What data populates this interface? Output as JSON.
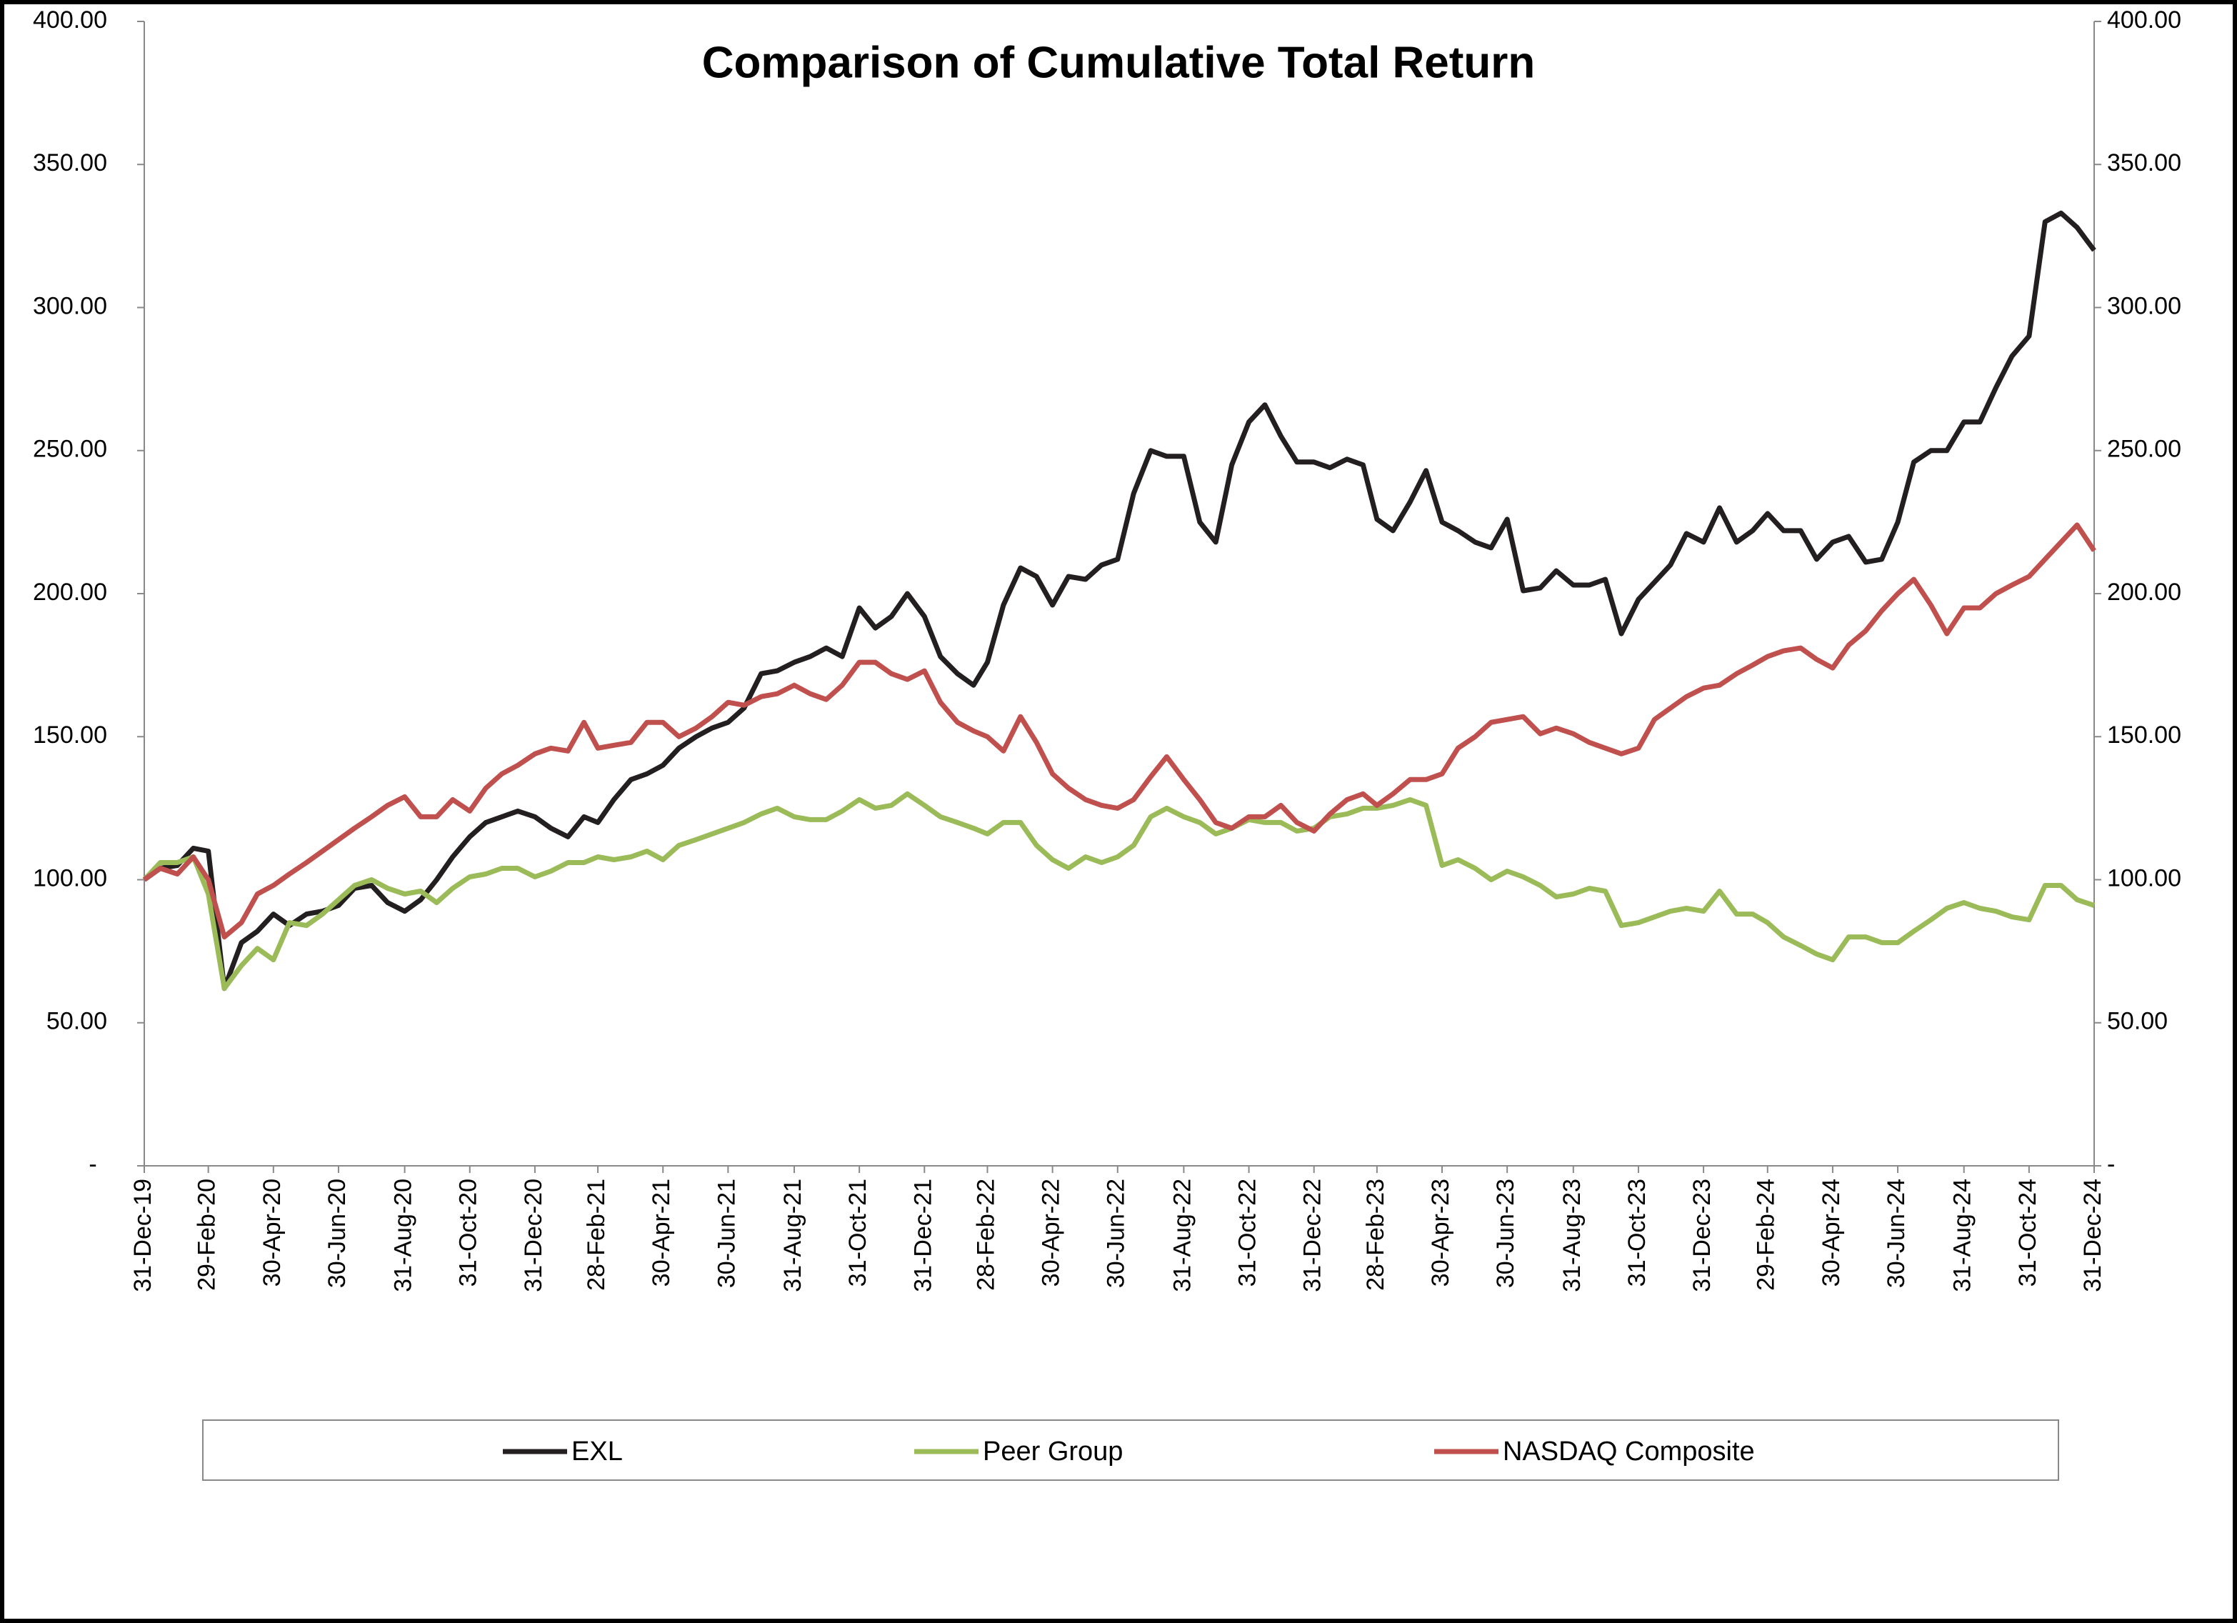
{
  "chart_data": {
    "type": "line",
    "title": "Comparison of Cumulative Total Return",
    "x": [
      "2019-12-31",
      "2020-01-15",
      "2020-01-31",
      "2020-02-15",
      "2020-02-29",
      "2020-03-15",
      "2020-03-31",
      "2020-04-15",
      "2020-04-30",
      "2020-05-15",
      "2020-05-31",
      "2020-06-15",
      "2020-06-30",
      "2020-07-15",
      "2020-07-31",
      "2020-08-15",
      "2020-08-31",
      "2020-09-15",
      "2020-09-30",
      "2020-10-15",
      "2020-10-31",
      "2020-11-15",
      "2020-11-30",
      "2020-12-15",
      "2020-12-31",
      "2021-01-15",
      "2021-01-31",
      "2021-02-15",
      "2021-02-28",
      "2021-03-15",
      "2021-03-31",
      "2021-04-15",
      "2021-04-30",
      "2021-05-15",
      "2021-05-31",
      "2021-06-15",
      "2021-06-30",
      "2021-07-15",
      "2021-07-31",
      "2021-08-15",
      "2021-08-31",
      "2021-09-15",
      "2021-09-30",
      "2021-10-15",
      "2021-10-31",
      "2021-11-15",
      "2021-11-30",
      "2021-12-15",
      "2021-12-31",
      "2022-01-15",
      "2022-01-31",
      "2022-02-15",
      "2022-02-28",
      "2022-03-15",
      "2022-03-31",
      "2022-04-15",
      "2022-04-30",
      "2022-05-15",
      "2022-05-31",
      "2022-06-15",
      "2022-06-30",
      "2022-07-15",
      "2022-07-31",
      "2022-08-15",
      "2022-08-31",
      "2022-09-15",
      "2022-09-30",
      "2022-10-15",
      "2022-10-31",
      "2022-11-15",
      "2022-11-30",
      "2022-12-15",
      "2022-12-31",
      "2023-01-15",
      "2023-01-31",
      "2023-02-15",
      "2023-02-28",
      "2023-03-15",
      "2023-03-31",
      "2023-04-15",
      "2023-04-30",
      "2023-05-15",
      "2023-05-31",
      "2023-06-15",
      "2023-06-30",
      "2023-07-15",
      "2023-07-31",
      "2023-08-15",
      "2023-08-31",
      "2023-09-15",
      "2023-09-30",
      "2023-10-15",
      "2023-10-31",
      "2023-11-15",
      "2023-11-30",
      "2023-12-15",
      "2023-12-31",
      "2024-01-15",
      "2024-01-31",
      "2024-02-15",
      "2024-02-29",
      "2024-03-15",
      "2024-03-31",
      "2024-04-15",
      "2024-04-30",
      "2024-05-15",
      "2024-05-31",
      "2024-06-15",
      "2024-06-30",
      "2024-07-15",
      "2024-07-31",
      "2024-08-15",
      "2024-08-31",
      "2024-09-15",
      "2024-09-30",
      "2024-10-15",
      "2024-10-31",
      "2024-11-15",
      "2024-11-30",
      "2024-12-15",
      "2024-12-31"
    ],
    "series": [
      {
        "name": "EXL",
        "color": "#231f20",
        "values": [
          100,
          104,
          105,
          111,
          110,
          62,
          78,
          82,
          88,
          84,
          88,
          89,
          91,
          97,
          98,
          92,
          89,
          93,
          100,
          108,
          115,
          120,
          122,
          124,
          122,
          118,
          115,
          122,
          120,
          128,
          135,
          137,
          140,
          146,
          150,
          153,
          155,
          160,
          172,
          173,
          176,
          178,
          181,
          178,
          195,
          188,
          192,
          200,
          192,
          178,
          172,
          168,
          176,
          196,
          209,
          206,
          196,
          206,
          205,
          210,
          212,
          235,
          250,
          248,
          248,
          225,
          218,
          245,
          260,
          266,
          255,
          246,
          246,
          244,
          247,
          245,
          226,
          222,
          232,
          243,
          225,
          222,
          218,
          216,
          226,
          201,
          202,
          208,
          203,
          203,
          205,
          186,
          198,
          204,
          210,
          221,
          218,
          230,
          218,
          222,
          228,
          222,
          222,
          212,
          218,
          220,
          211,
          212,
          225,
          246,
          250,
          250,
          260,
          260,
          272,
          283,
          290,
          330,
          333,
          328,
          320
        ]
      },
      {
        "name": "Peer Group",
        "color": "#9bbb59",
        "values": [
          100,
          106,
          106,
          108,
          95,
          62,
          70,
          76,
          72,
          85,
          84,
          88,
          93,
          98,
          100,
          97,
          95,
          96,
          92,
          97,
          101,
          102,
          104,
          104,
          101,
          103,
          106,
          106,
          108,
          107,
          108,
          110,
          107,
          112,
          114,
          116,
          118,
          120,
          123,
          125,
          122,
          121,
          121,
          124,
          128,
          125,
          126,
          130,
          126,
          122,
          120,
          118,
          116,
          120,
          120,
          112,
          107,
          104,
          108,
          106,
          108,
          112,
          122,
          125,
          122,
          120,
          116,
          118,
          121,
          120,
          120,
          117,
          118,
          122,
          123,
          125,
          125,
          126,
          128,
          126,
          105,
          107,
          104,
          100,
          103,
          101,
          98,
          94,
          95,
          97,
          96,
          84,
          85,
          87,
          89,
          90,
          89,
          96,
          88,
          88,
          85,
          80,
          77,
          74,
          72,
          80,
          80,
          78,
          78,
          82,
          86,
          90,
          92,
          90,
          89,
          87,
          86,
          98,
          98,
          93,
          91
        ]
      },
      {
        "name": "NASDAQ Composite",
        "color": "#c0504d",
        "values": [
          100,
          104,
          102,
          108,
          100,
          80,
          85,
          95,
          98,
          102,
          106,
          110,
          114,
          118,
          122,
          126,
          129,
          122,
          122,
          128,
          124,
          132,
          137,
          140,
          144,
          146,
          145,
          155,
          146,
          147,
          148,
          155,
          155,
          150,
          153,
          157,
          162,
          161,
          164,
          165,
          168,
          165,
          163,
          168,
          176,
          176,
          172,
          170,
          173,
          162,
          155,
          152,
          150,
          145,
          157,
          148,
          137,
          132,
          128,
          126,
          125,
          128,
          136,
          143,
          135,
          128,
          120,
          118,
          122,
          122,
          126,
          120,
          117,
          123,
          128,
          130,
          126,
          130,
          135,
          135,
          137,
          146,
          150,
          155,
          156,
          157,
          151,
          153,
          151,
          148,
          146,
          144,
          146,
          156,
          160,
          164,
          167,
          168,
          172,
          175,
          178,
          180,
          181,
          177,
          174,
          182,
          187,
          194,
          200,
          205,
          196,
          186,
          195,
          195,
          200,
          203,
          206,
          212,
          218,
          224,
          215
        ]
      }
    ],
    "xlim": [
      "2019-12-31",
      "2024-12-31"
    ],
    "xticks": [
      {
        "value": "2019-12-31",
        "label": "31-Dec-19"
      },
      {
        "value": "2020-02-29",
        "label": "29-Feb-20"
      },
      {
        "value": "2020-04-30",
        "label": "30-Apr-20"
      },
      {
        "value": "2020-06-30",
        "label": "30-Jun-20"
      },
      {
        "value": "2020-08-31",
        "label": "31-Aug-20"
      },
      {
        "value": "2020-10-31",
        "label": "31-Oct-20"
      },
      {
        "value": "2020-12-31",
        "label": "31-Dec-20"
      },
      {
        "value": "2021-02-28",
        "label": "28-Feb-21"
      },
      {
        "value": "2021-04-30",
        "label": "30-Apr-21"
      },
      {
        "value": "2021-06-30",
        "label": "30-Jun-21"
      },
      {
        "value": "2021-08-31",
        "label": "31-Aug-21"
      },
      {
        "value": "2021-10-31",
        "label": "31-Oct-21"
      },
      {
        "value": "2021-12-31",
        "label": "31-Dec-21"
      },
      {
        "value": "2022-02-28",
        "label": "28-Feb-22"
      },
      {
        "value": "2022-04-30",
        "label": "30-Apr-22"
      },
      {
        "value": "2022-06-30",
        "label": "30-Jun-22"
      },
      {
        "value": "2022-08-31",
        "label": "31-Aug-22"
      },
      {
        "value": "2022-10-31",
        "label": "31-Oct-22"
      },
      {
        "value": "2022-12-31",
        "label": "31-Dec-22"
      },
      {
        "value": "2023-02-28",
        "label": "28-Feb-23"
      },
      {
        "value": "2023-04-30",
        "label": "30-Apr-23"
      },
      {
        "value": "2023-06-30",
        "label": "30-Jun-23"
      },
      {
        "value": "2023-08-31",
        "label": "31-Aug-23"
      },
      {
        "value": "2023-10-31",
        "label": "31-Oct-23"
      },
      {
        "value": "2023-12-31",
        "label": "31-Dec-23"
      },
      {
        "value": "2024-02-29",
        "label": "29-Feb-24"
      },
      {
        "value": "2024-04-30",
        "label": "30-Apr-24"
      },
      {
        "value": "2024-06-30",
        "label": "30-Jun-24"
      },
      {
        "value": "2024-08-31",
        "label": "31-Aug-24"
      },
      {
        "value": "2024-10-31",
        "label": "31-Oct-24"
      },
      {
        "value": "2024-12-31",
        "label": "31-Dec-24"
      }
    ],
    "ylim": [
      0,
      400
    ],
    "yticks": [
      {
        "value": 0,
        "label": "-"
      },
      {
        "value": 50,
        "label": "50.00"
      },
      {
        "value": 100,
        "label": "100.00"
      },
      {
        "value": 150,
        "label": "150.00"
      },
      {
        "value": 200,
        "label": "200.00"
      },
      {
        "value": 250,
        "label": "250.00"
      },
      {
        "value": 300,
        "label": "300.00"
      },
      {
        "value": 350,
        "label": "350.00"
      },
      {
        "value": 400,
        "label": "400.00"
      }
    ],
    "y2lim": [
      0,
      400
    ],
    "y2ticks": [
      {
        "value": 0,
        "label": "-"
      },
      {
        "value": 50,
        "label": "50.00"
      },
      {
        "value": 100,
        "label": "100.00"
      },
      {
        "value": 150,
        "label": "150.00"
      },
      {
        "value": 200,
        "label": "200.00"
      },
      {
        "value": 250,
        "label": "250.00"
      },
      {
        "value": 300,
        "label": "300.00"
      },
      {
        "value": 350,
        "label": "350.00"
      },
      {
        "value": 400,
        "label": "400.00"
      }
    ],
    "legend": "bottom",
    "grid": false
  }
}
